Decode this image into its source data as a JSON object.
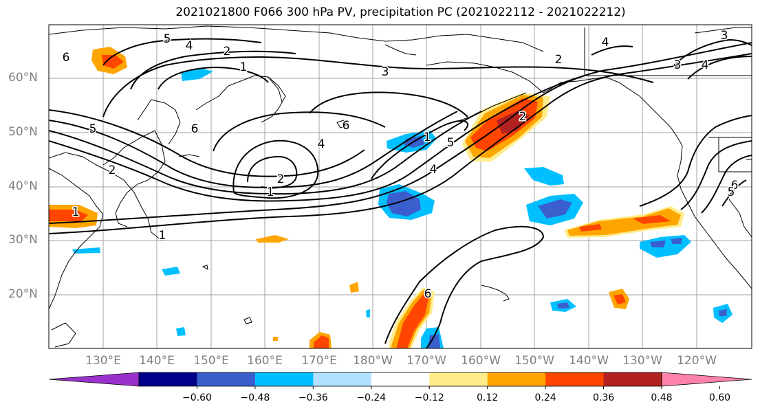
{
  "title": "2021021800 F066 300 hPa PV, precipitation PC (2021022112 - 2021022212)",
  "map": {
    "lat_ticks": [
      "60°N",
      "50°N",
      "40°N",
      "30°N",
      "20°N"
    ],
    "lon_ticks": [
      "130°E",
      "140°E",
      "150°E",
      "160°E",
      "170°E",
      "180°W",
      "170°W",
      "160°W",
      "150°W",
      "140°W",
      "130°W",
      "120°W"
    ],
    "contour_labels": [
      "6",
      "5",
      "4",
      "2",
      "1",
      "3",
      "6",
      "4",
      "6",
      "1",
      "2",
      "1",
      "1",
      "6",
      "5",
      "4",
      "2",
      "3",
      "4",
      "1",
      "5",
      "6",
      "2",
      "3",
      "4",
      "5",
      "2"
    ],
    "colors": {
      "ocean_bg": "#ffffff",
      "grid": "#a0a0a0",
      "coast": "#000000",
      "contour": "#000000"
    }
  },
  "colorbar": {
    "tick_labels": [
      "−0.60",
      "−0.48",
      "−0.36",
      "−0.24",
      "−0.12",
      "0.12",
      "0.24",
      "0.36",
      "0.48",
      "0.60"
    ],
    "colors": [
      "#9932cc",
      "#00008b",
      "#3a5fcd",
      "#00bfff",
      "#b0e2ff",
      "#ffffff",
      "#ffec8b",
      "#ffa500",
      "#ff4500",
      "#b22222",
      "#ff82ab"
    ]
  }
}
